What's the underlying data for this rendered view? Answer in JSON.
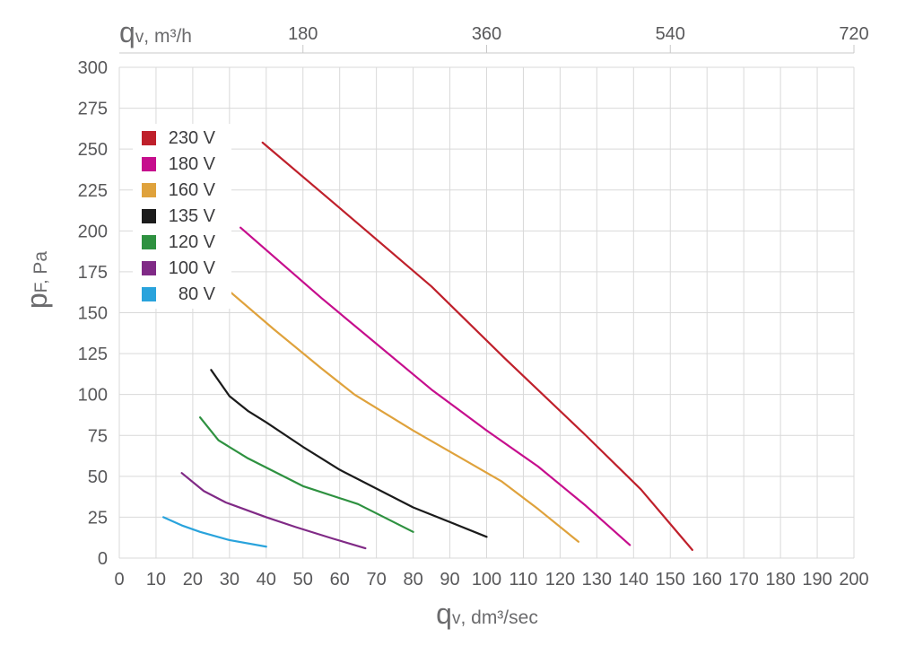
{
  "style": {
    "grid_color": "#d9d9d9",
    "axis_line_color": "#c8c8c8",
    "tick_text_color": "#58585a",
    "axis_title_color": "#6b6b6d",
    "legend_text_color": "#3c3c3e",
    "background_color": "#ffffff"
  },
  "chart_data": {
    "type": "line",
    "title": "",
    "grid": true,
    "legend_position": "top-left-inside",
    "x_axis": {
      "label_symbol": "q",
      "label_sub": "v",
      "label_unit": ", dm³/sec",
      "min": 0,
      "max": 200,
      "tick_step": 10,
      "ticks": [
        0,
        10,
        20,
        30,
        40,
        50,
        60,
        70,
        80,
        90,
        100,
        110,
        120,
        130,
        140,
        150,
        160,
        170,
        180,
        190,
        200
      ]
    },
    "x_axis_top": {
      "label_symbol": "q",
      "label_sub": "v",
      "label_unit": ", m³/h",
      "conversion_factor": 3.6,
      "ticks": [
        180,
        360,
        540,
        720
      ]
    },
    "y_axis": {
      "label_symbol": "p",
      "label_sub": "F,",
      "label_unit": " Pa",
      "min": 0,
      "max": 300,
      "tick_step": 25,
      "ticks": [
        0,
        25,
        50,
        75,
        100,
        125,
        150,
        175,
        200,
        225,
        250,
        275,
        300
      ]
    },
    "series": [
      {
        "name": "230 V",
        "color": "#bf202b",
        "points": [
          [
            39,
            254
          ],
          [
            60,
            214
          ],
          [
            85,
            166
          ],
          [
            105,
            122
          ],
          [
            127,
            75
          ],
          [
            142,
            42
          ],
          [
            156,
            5
          ]
        ]
      },
      {
        "name": "180 V",
        "color": "#c60e8d",
        "points": [
          [
            33,
            202
          ],
          [
            55,
            159
          ],
          [
            85,
            103
          ],
          [
            100,
            78
          ],
          [
            114,
            56
          ],
          [
            127,
            32
          ],
          [
            139,
            8
          ]
        ]
      },
      {
        "name": "160 V",
        "color": "#dfa23c",
        "points": [
          [
            29,
            165
          ],
          [
            42,
            140
          ],
          [
            55,
            116
          ],
          [
            64,
            100
          ],
          [
            80,
            78
          ],
          [
            104,
            47
          ],
          [
            114,
            30
          ],
          [
            125,
            10
          ]
        ]
      },
      {
        "name": "135 V",
        "color": "#1b1b1b",
        "points": [
          [
            25,
            115
          ],
          [
            30,
            99
          ],
          [
            35,
            90
          ],
          [
            40,
            83
          ],
          [
            50,
            68
          ],
          [
            60,
            54
          ],
          [
            80,
            31
          ],
          [
            100,
            13
          ]
        ]
      },
      {
        "name": "120 V",
        "color": "#2e9140",
        "points": [
          [
            22,
            86
          ],
          [
            27,
            72
          ],
          [
            35,
            61
          ],
          [
            50,
            44
          ],
          [
            65,
            33
          ],
          [
            80,
            16
          ]
        ]
      },
      {
        "name": "100 V",
        "color": "#802a86",
        "points": [
          [
            17,
            52
          ],
          [
            23,
            41
          ],
          [
            29,
            34
          ],
          [
            40,
            25
          ],
          [
            48,
            19
          ],
          [
            58,
            12
          ],
          [
            67,
            6
          ]
        ]
      },
      {
        "name": "80 V",
        "color": "#29a3dc",
        "points": [
          [
            12,
            25
          ],
          [
            17,
            20
          ],
          [
            22,
            16
          ],
          [
            30,
            11
          ],
          [
            40,
            7
          ]
        ]
      }
    ]
  }
}
